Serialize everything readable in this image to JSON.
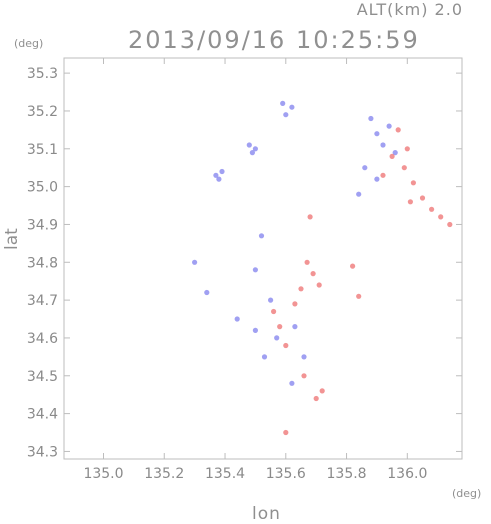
{
  "header": {
    "altitude": "ALT(km) 2.0",
    "datetime": "2013/09/16 10:25:59"
  },
  "chart_data": {
    "type": "scatter",
    "title": "2013/09/16 10:25:59",
    "subtitle": "ALT(km) 2.0",
    "xlabel": "lon",
    "ylabel": "lat",
    "x_unit": "(deg)",
    "y_unit": "(deg)",
    "xlim": [
      134.87,
      136.18
    ],
    "ylim": [
      34.28,
      35.34
    ],
    "x_ticks": [
      135.0,
      135.2,
      135.4,
      135.6,
      135.8,
      136.0
    ],
    "x_tick_labels": [
      "135.0",
      "135.2",
      "135.4",
      "135.6",
      "135.8",
      "136.0"
    ],
    "y_ticks": [
      34.3,
      34.4,
      34.5,
      34.6,
      34.7,
      34.8,
      34.9,
      35.0,
      35.1,
      35.2,
      35.3
    ],
    "y_tick_labels": [
      "34.3",
      "34.4",
      "34.5",
      "34.6",
      "34.7",
      "34.8",
      "34.9",
      "35.0",
      "35.1",
      "35.2",
      "35.3"
    ],
    "grid": false,
    "colors": {
      "toward": "#7a7af0",
      "away": "#f06a6a",
      "frame": "#bdbdbd"
    },
    "series": [
      {
        "color": "#8080ee",
        "points": [
          [
            135.37,
            35.03
          ],
          [
            135.39,
            35.04
          ],
          [
            135.38,
            35.02
          ],
          [
            135.48,
            35.11
          ],
          [
            135.5,
            35.1
          ],
          [
            135.49,
            35.09
          ],
          [
            135.59,
            35.22
          ],
          [
            135.6,
            35.19
          ],
          [
            135.62,
            35.21
          ],
          [
            135.9,
            35.14
          ],
          [
            135.92,
            35.11
          ],
          [
            135.88,
            35.18
          ],
          [
            135.94,
            35.16
          ],
          [
            135.96,
            35.09
          ],
          [
            135.86,
            35.05
          ],
          [
            135.9,
            35.02
          ],
          [
            135.84,
            34.98
          ],
          [
            135.52,
            34.87
          ],
          [
            135.5,
            34.78
          ],
          [
            135.55,
            34.7
          ],
          [
            135.57,
            34.6
          ],
          [
            135.5,
            34.62
          ],
          [
            135.53,
            34.55
          ],
          [
            135.63,
            34.63
          ],
          [
            135.66,
            34.55
          ],
          [
            135.3,
            34.8
          ],
          [
            135.34,
            34.72
          ],
          [
            135.44,
            34.65
          ],
          [
            135.62,
            34.48
          ]
        ]
      },
      {
        "color": "#ee7070",
        "points": [
          [
            135.67,
            34.8
          ],
          [
            135.69,
            34.77
          ],
          [
            135.71,
            34.74
          ],
          [
            135.65,
            34.73
          ],
          [
            135.63,
            34.69
          ],
          [
            135.58,
            34.63
          ],
          [
            135.56,
            34.67
          ],
          [
            135.6,
            34.58
          ],
          [
            135.66,
            34.5
          ],
          [
            135.72,
            34.46
          ],
          [
            135.7,
            34.44
          ],
          [
            135.99,
            35.05
          ],
          [
            136.02,
            35.01
          ],
          [
            136.05,
            34.97
          ],
          [
            136.08,
            34.94
          ],
          [
            136.11,
            34.92
          ],
          [
            136.14,
            34.9
          ],
          [
            136.01,
            34.96
          ],
          [
            135.95,
            35.08
          ],
          [
            135.92,
            35.03
          ],
          [
            135.97,
            35.15
          ],
          [
            136.0,
            35.1
          ],
          [
            135.84,
            34.71
          ],
          [
            135.82,
            34.79
          ],
          [
            135.68,
            34.92
          ],
          [
            135.6,
            34.35
          ]
        ]
      }
    ]
  }
}
